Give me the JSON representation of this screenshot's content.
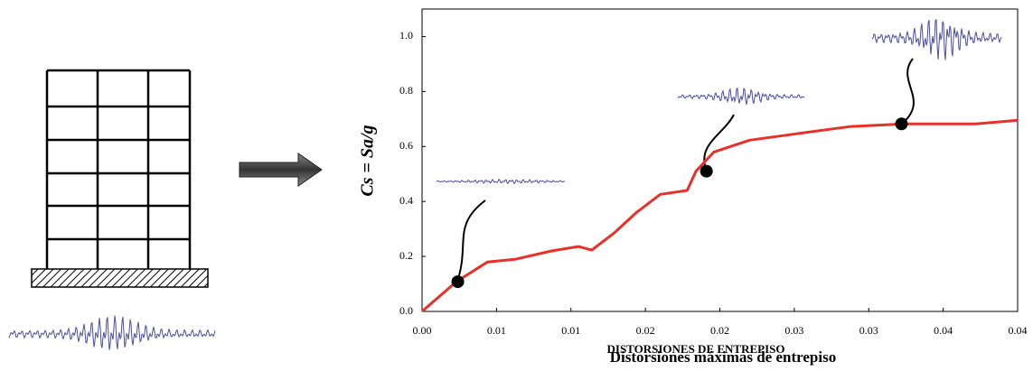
{
  "chart_data": {
    "type": "line",
    "ylabel": "Cs = Sa/g",
    "xlabel": "Distorsiones máximas de entrepiso",
    "xlabel_secondary": "DISTORSIONES DE ENTREPISO",
    "x": [
      0,
      0.0023,
      0.0044,
      0.0063,
      0.0087,
      0.0105,
      0.0114,
      0.0129,
      0.0144,
      0.016,
      0.0178,
      0.0184,
      0.0196,
      0.022,
      0.0251,
      0.0287,
      0.0324,
      0.0372,
      0.04
    ],
    "series": [
      {
        "color": "#e8302a",
        "values": [
          0,
          0.108,
          0.18,
          0.19,
          0.22,
          0.236,
          0.223,
          0.285,
          0.36,
          0.426,
          0.44,
          0.51,
          0.58,
          0.623,
          0.646,
          0.672,
          0.682,
          0.682,
          0.695
        ]
      }
    ],
    "marker_x": [
      0.0024,
      0.0191,
      0.0322
    ],
    "marker_y": [
      0.108,
      0.51,
      0.682
    ],
    "xlim": [
      0,
      0.04
    ],
    "ylim": [
      0,
      1.1
    ],
    "xticks": [
      {
        "value": 0,
        "label": "0.00"
      },
      {
        "value": 0.005,
        "label": "0.01"
      },
      {
        "value": 0.01,
        "label": "0.01"
      },
      {
        "value": 0.015,
        "label": "0.02"
      },
      {
        "value": 0.02,
        "label": "0.02"
      },
      {
        "value": 0.025,
        "label": "0.03"
      },
      {
        "value": 0.03,
        "label": "0.03"
      },
      {
        "value": 0.035,
        "label": "0.04"
      },
      {
        "value": 0.04,
        "label": "0.04"
      }
    ],
    "yticks": [
      {
        "value": 0,
        "label": "0.0"
      },
      0.2,
      0.4,
      0.6,
      0.8,
      {
        "value": 1,
        "label": "1.0"
      }
    ]
  }
}
